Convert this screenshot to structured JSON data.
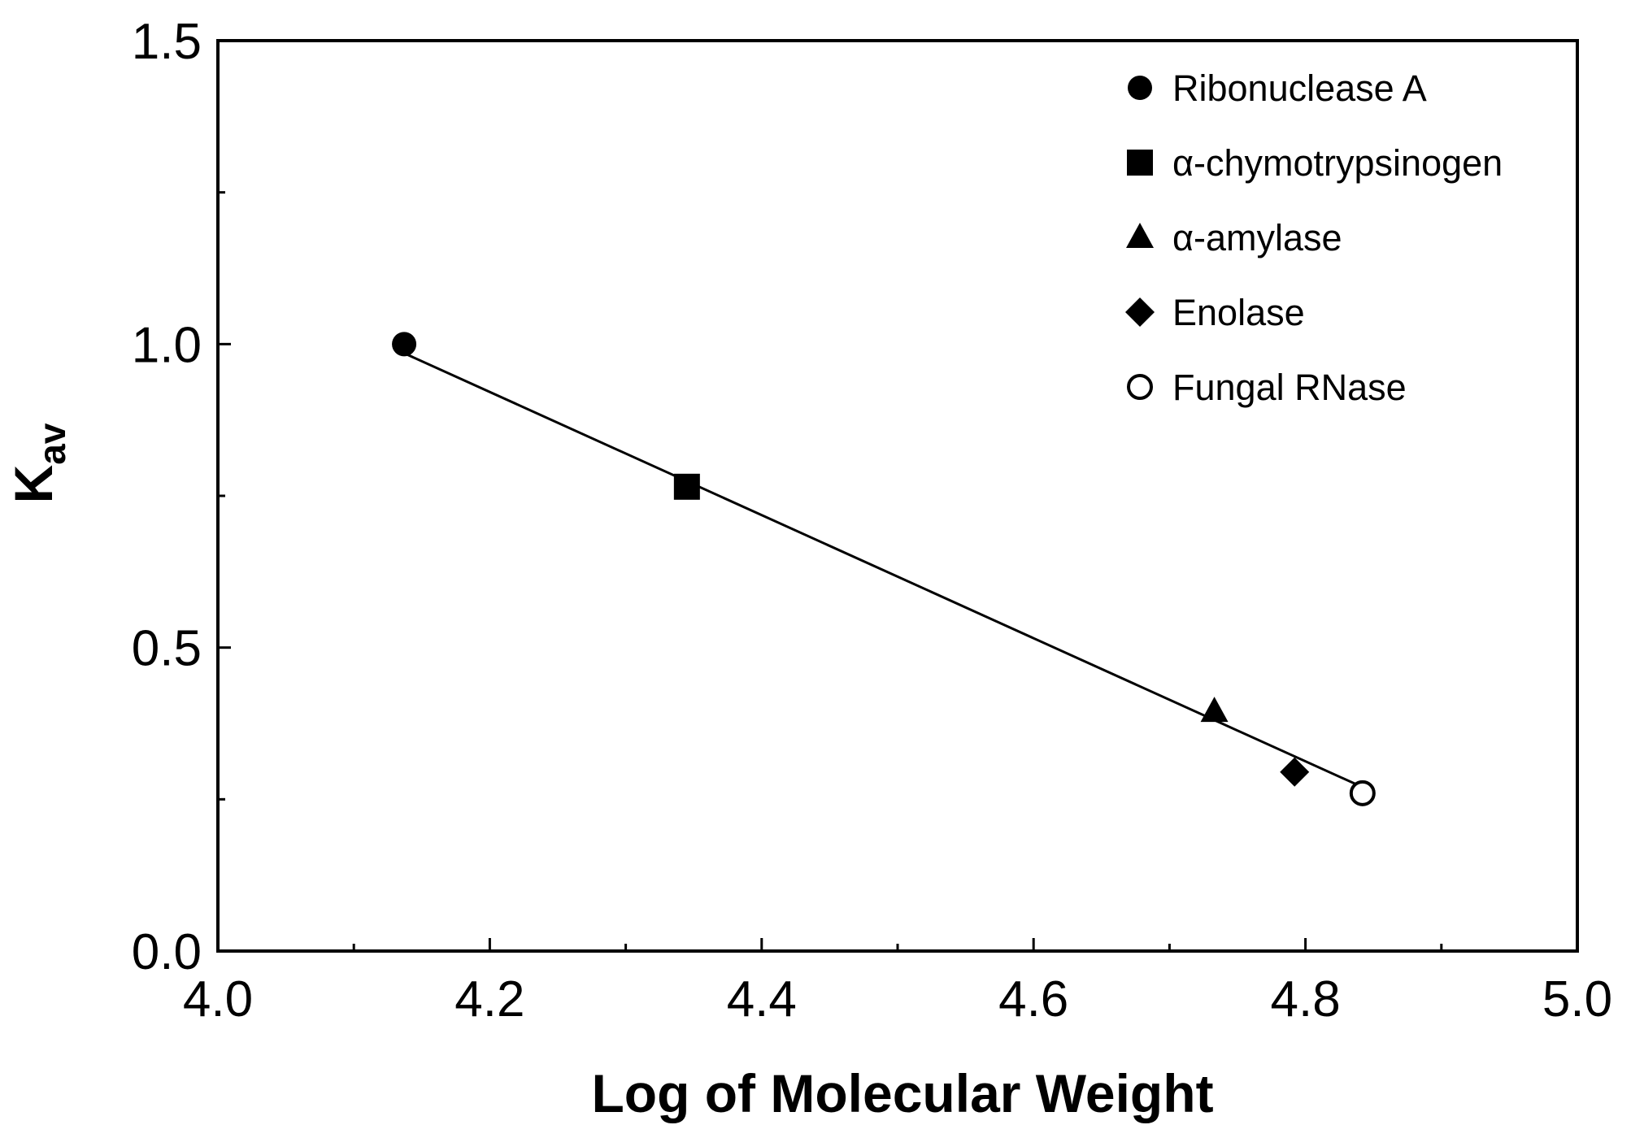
{
  "chart_data": {
    "type": "scatter",
    "title": "",
    "xlabel": "Log of Molecular Weight",
    "ylabel_main": "K",
    "ylabel_sub": "av",
    "xlim": [
      4.0,
      5.0
    ],
    "ylim": [
      0.0,
      1.5
    ],
    "x_ticks": [
      {
        "value": 4.0,
        "label": "4.0"
      },
      {
        "value": 4.2,
        "label": "4.2"
      },
      {
        "value": 4.4,
        "label": "4.4"
      },
      {
        "value": 4.6,
        "label": "4.6"
      },
      {
        "value": 4.8,
        "label": "4.8"
      },
      {
        "value": 5.0,
        "label": "5.0"
      }
    ],
    "x_minor_ticks": [
      4.1,
      4.3,
      4.5,
      4.7,
      4.9
    ],
    "y_ticks": [
      {
        "value": 0.0,
        "label": "0.0"
      },
      {
        "value": 0.5,
        "label": "0.5"
      },
      {
        "value": 1.0,
        "label": "1.0"
      },
      {
        "value": 1.5,
        "label": "1.5"
      }
    ],
    "y_minor_ticks": [
      0.25,
      0.75,
      1.25
    ],
    "grid": false,
    "legend_position": "top-right",
    "series": [
      {
        "name": "Ribonuclease A",
        "marker": "circle-filled",
        "x": 4.137,
        "y": 1.0
      },
      {
        "name": "α-chymotrypsinogen",
        "marker": "square-filled",
        "x": 4.345,
        "y": 0.765
      },
      {
        "name": "α-amylase",
        "marker": "triangle-filled",
        "x": 4.733,
        "y": 0.395
      },
      {
        "name": "Enolase",
        "marker": "diamond-filled",
        "x": 4.792,
        "y": 0.295
      },
      {
        "name": "Fungal RNase",
        "marker": "circle-open",
        "x": 4.842,
        "y": 0.26
      }
    ],
    "fit_line": {
      "x": [
        4.137,
        4.842
      ],
      "y": [
        0.985,
        0.27
      ]
    },
    "colors": {
      "ink": "#000000",
      "background": "#ffffff"
    }
  }
}
